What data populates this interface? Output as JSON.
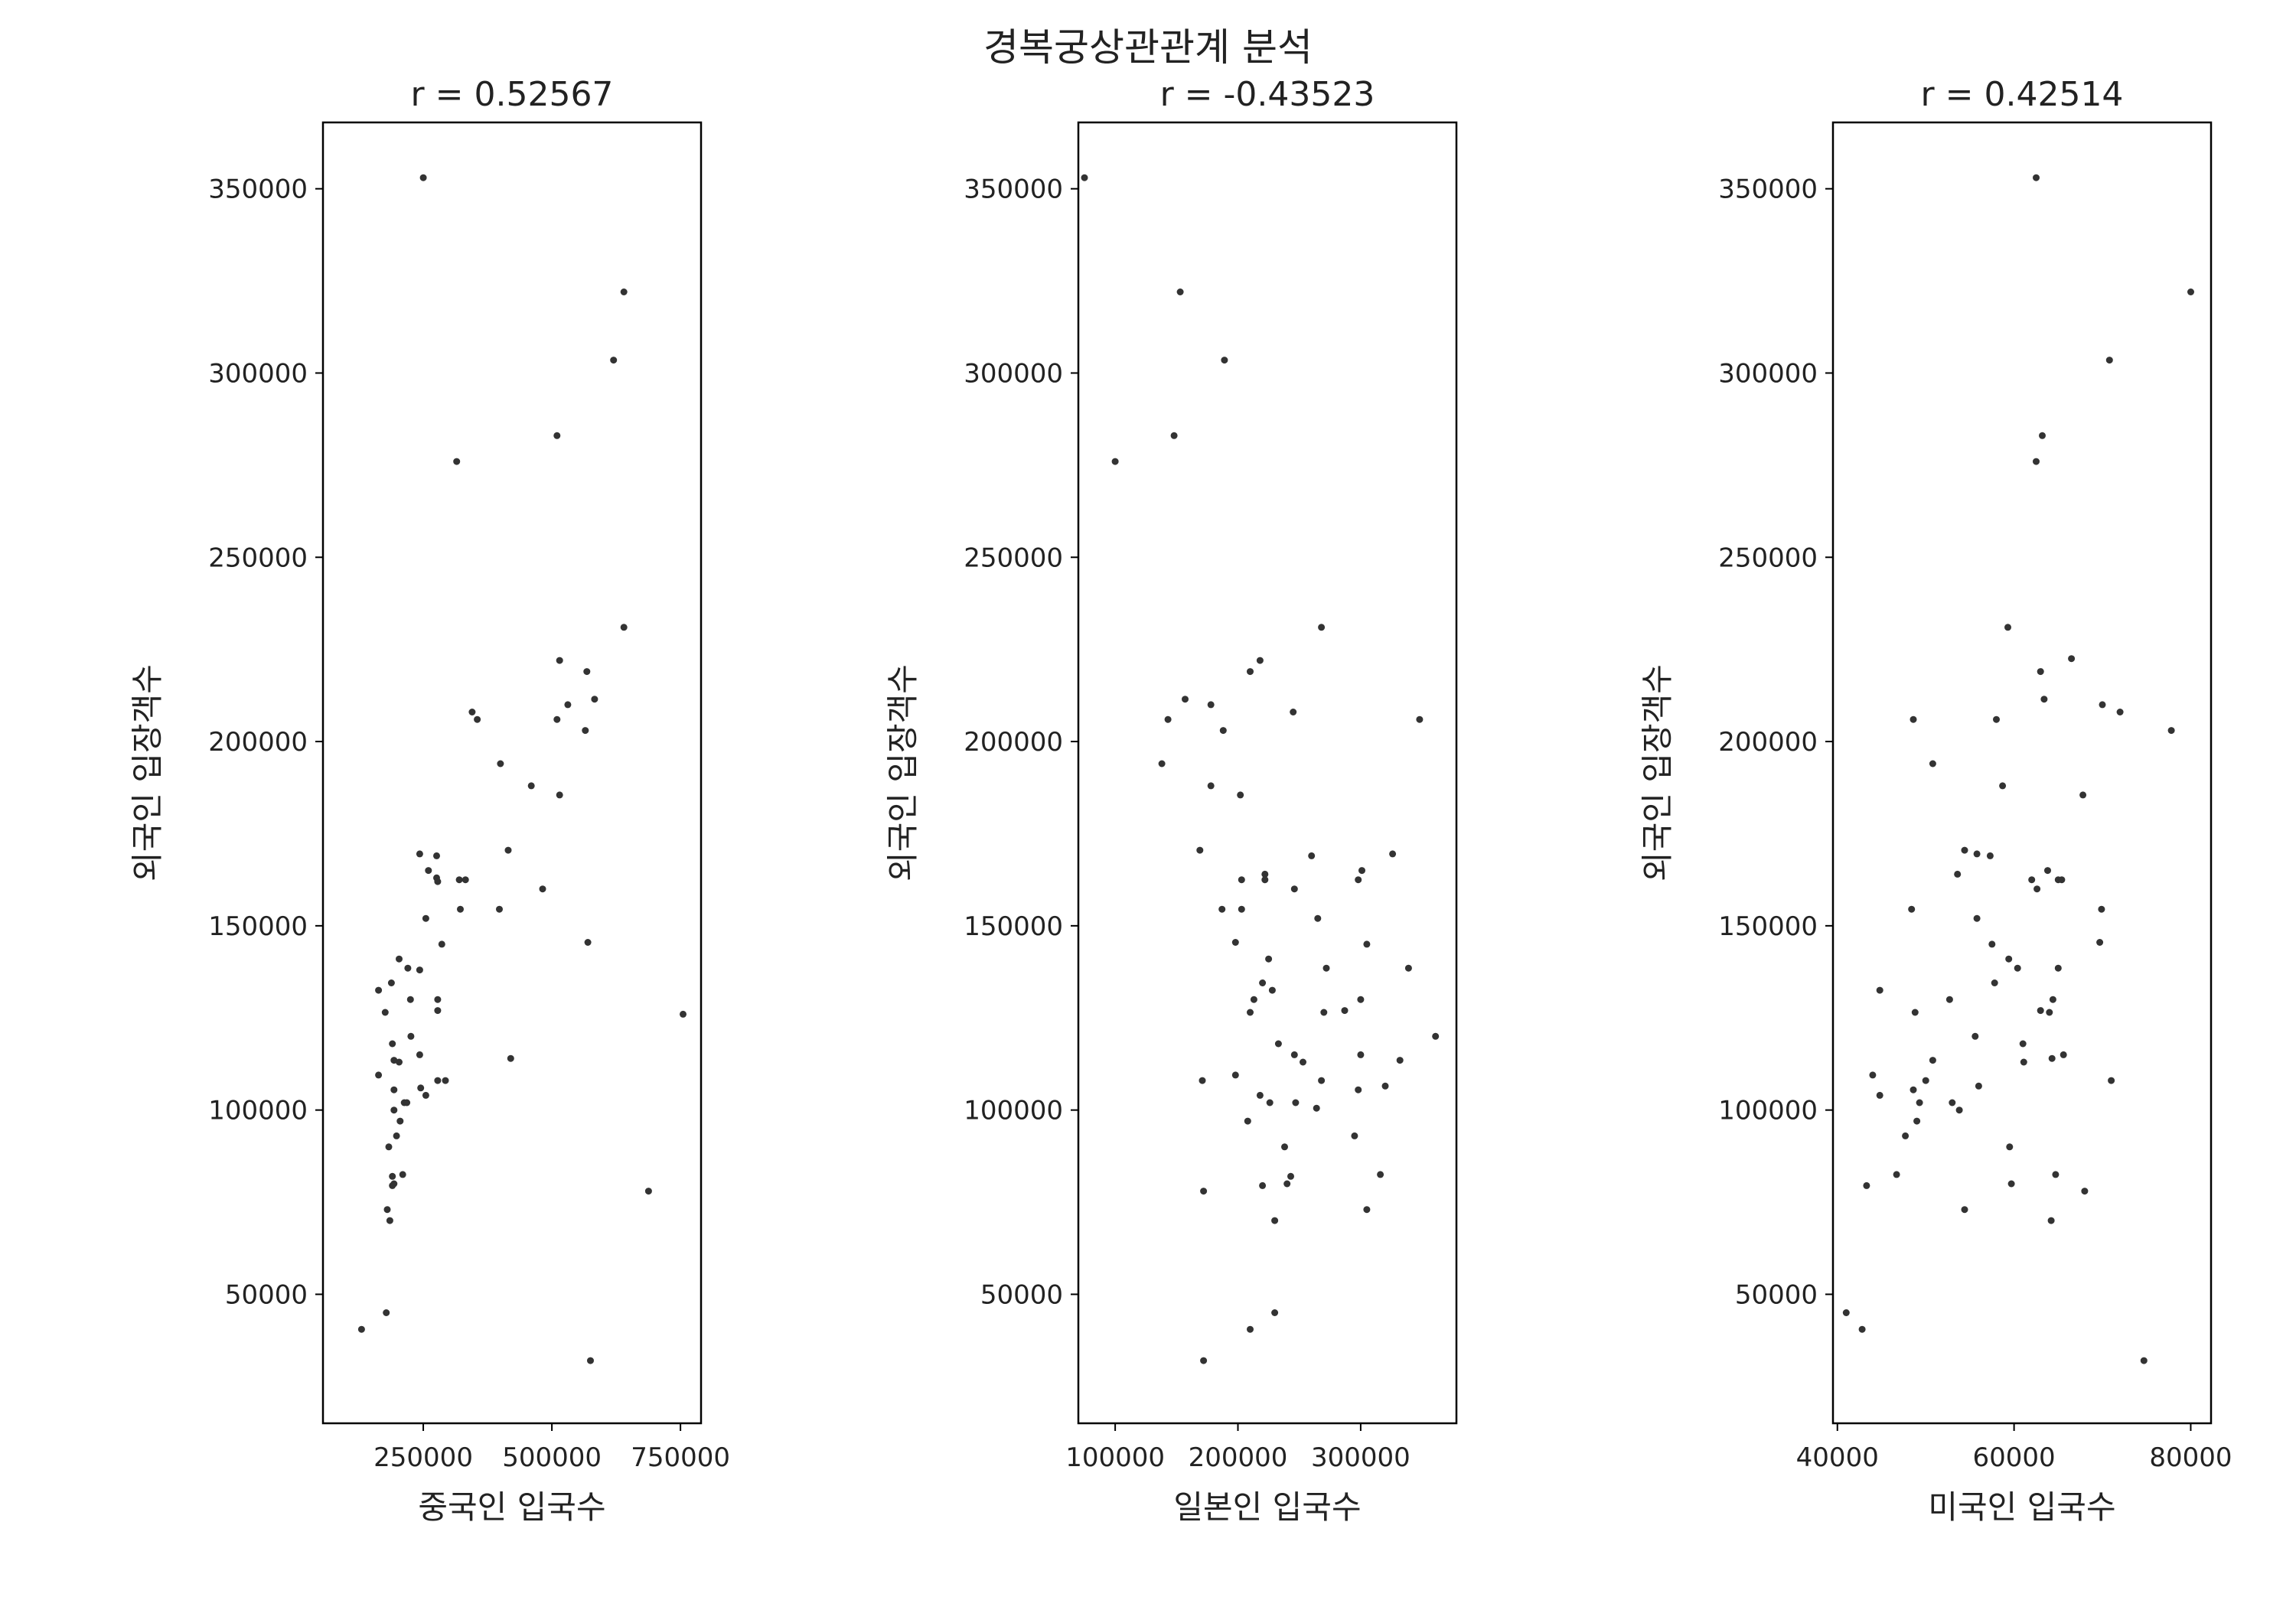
{
  "figure": {
    "suptitle": "경복궁상관관계 분석"
  },
  "chart_data": [
    {
      "type": "scatter",
      "title": "r = 0.52567",
      "xlabel": "중국인 입국수",
      "ylabel": "외국인 입장객수",
      "xlim": [
        55000,
        790000
      ],
      "ylim": [
        15000,
        368000
      ],
      "xticks": [
        "250000",
        "500000",
        "750000"
      ],
      "yticks": [
        "50000",
        "100000",
        "150000",
        "200000",
        "250000",
        "300000",
        "350000"
      ],
      "grid": false,
      "point_color": "#333333",
      "points": [
        [
          250000,
          353000
        ],
        [
          640000,
          322000
        ],
        [
          620000,
          303500
        ],
        [
          315000,
          276000
        ],
        [
          510000,
          283000
        ],
        [
          640000,
          231000
        ],
        [
          515000,
          222000
        ],
        [
          568000,
          219000
        ],
        [
          583000,
          211500
        ],
        [
          531000,
          210000
        ],
        [
          510000,
          206000
        ],
        [
          345000,
          208000
        ],
        [
          355000,
          206000
        ],
        [
          565000,
          203000
        ],
        [
          400000,
          194000
        ],
        [
          460000,
          188000
        ],
        [
          515000,
          185500
        ],
        [
          415000,
          170500
        ],
        [
          243000,
          169500
        ],
        [
          276000,
          169000
        ],
        [
          260000,
          165000
        ],
        [
          276000,
          163000
        ],
        [
          278000,
          162000
        ],
        [
          320000,
          162500
        ],
        [
          332000,
          162500
        ],
        [
          482000,
          160000
        ],
        [
          322000,
          154500
        ],
        [
          398000,
          154500
        ],
        [
          255000,
          152000
        ],
        [
          286000,
          145000
        ],
        [
          570000,
          145500
        ],
        [
          203000,
          141000
        ],
        [
          220000,
          138500
        ],
        [
          243000,
          138000
        ],
        [
          188000,
          134500
        ],
        [
          163000,
          132500
        ],
        [
          225000,
          130000
        ],
        [
          278000,
          130000
        ],
        [
          278000,
          127000
        ],
        [
          176000,
          126500
        ],
        [
          755000,
          126000
        ],
        [
          190000,
          118000
        ],
        [
          226000,
          120000
        ],
        [
          193000,
          113500
        ],
        [
          203000,
          113000
        ],
        [
          243000,
          115000
        ],
        [
          420000,
          114000
        ],
        [
          163000,
          109500
        ],
        [
          278000,
          108000
        ],
        [
          293000,
          108000
        ],
        [
          193000,
          105500
        ],
        [
          245000,
          106000
        ],
        [
          255000,
          104000
        ],
        [
          213000,
          102000
        ],
        [
          218000,
          102000
        ],
        [
          193000,
          100000
        ],
        [
          205000,
          97000
        ],
        [
          198000,
          93000
        ],
        [
          183000,
          90000
        ],
        [
          210000,
          82500
        ],
        [
          190000,
          82000
        ],
        [
          193000,
          80000
        ],
        [
          190000,
          79500
        ],
        [
          688000,
          78000
        ],
        [
          180000,
          73000
        ],
        [
          185000,
          70000
        ],
        [
          178000,
          45000
        ],
        [
          130000,
          40500
        ],
        [
          575000,
          32000
        ]
      ]
    },
    {
      "type": "scatter",
      "title": "r = -0.43523",
      "xlabel": "일본인 입국수",
      "ylabel": "외국인 입장객수",
      "xlim": [
        70000,
        378000
      ],
      "ylim": [
        15000,
        368000
      ],
      "xticks": [
        "100000",
        "200000",
        "300000"
      ],
      "yticks": [
        "50000",
        "100000",
        "150000",
        "200000",
        "250000",
        "300000",
        "350000"
      ],
      "grid": false,
      "point_color": "#333333",
      "points": [
        [
          75000,
          353000
        ],
        [
          153000,
          322000
        ],
        [
          189000,
          303500
        ],
        [
          100000,
          276000
        ],
        [
          148000,
          283000
        ],
        [
          268000,
          231000
        ],
        [
          218000,
          222000
        ],
        [
          210000,
          219000
        ],
        [
          157000,
          211500
        ],
        [
          178000,
          210000
        ],
        [
          143000,
          206000
        ],
        [
          245000,
          208000
        ],
        [
          348000,
          206000
        ],
        [
          188000,
          203000
        ],
        [
          138000,
          194000
        ],
        [
          178000,
          188000
        ],
        [
          202000,
          185500
        ],
        [
          169000,
          170500
        ],
        [
          326000,
          169500
        ],
        [
          260000,
          169000
        ],
        [
          301000,
          165000
        ],
        [
          222000,
          164000
        ],
        [
          222000,
          162500
        ],
        [
          203000,
          162500
        ],
        [
          298000,
          162500
        ],
        [
          246000,
          160000
        ],
        [
          187000,
          154500
        ],
        [
          203000,
          154500
        ],
        [
          265000,
          152000
        ],
        [
          305000,
          145000
        ],
        [
          198000,
          145500
        ],
        [
          225000,
          141000
        ],
        [
          272000,
          138500
        ],
        [
          339000,
          138500
        ],
        [
          220000,
          134500
        ],
        [
          228000,
          132500
        ],
        [
          300000,
          130000
        ],
        [
          213000,
          130000
        ],
        [
          287000,
          127000
        ],
        [
          270000,
          126500
        ],
        [
          210000,
          126500
        ],
        [
          361000,
          120000
        ],
        [
          233000,
          118000
        ],
        [
          246000,
          115000
        ],
        [
          253000,
          113000
        ],
        [
          300000,
          115000
        ],
        [
          332000,
          113500
        ],
        [
          198000,
          109500
        ],
        [
          171000,
          108000
        ],
        [
          268000,
          108000
        ],
        [
          320000,
          106500
        ],
        [
          298000,
          105500
        ],
        [
          218000,
          104000
        ],
        [
          226000,
          102000
        ],
        [
          247000,
          102000
        ],
        [
          264000,
          100500
        ],
        [
          208000,
          97000
        ],
        [
          295000,
          93000
        ],
        [
          238000,
          90000
        ],
        [
          316000,
          82500
        ],
        [
          243000,
          82000
        ],
        [
          240000,
          80000
        ],
        [
          220000,
          79500
        ],
        [
          172000,
          78000
        ],
        [
          305000,
          73000
        ],
        [
          230000,
          70000
        ],
        [
          230000,
          45000
        ],
        [
          210000,
          40500
        ],
        [
          172000,
          32000
        ]
      ]
    },
    {
      "type": "scatter",
      "title": "r = 0.42514",
      "xlabel": "미국인 입국수",
      "ylabel": "외국인 입장객수",
      "xlim": [
        39500,
        82300
      ],
      "ylim": [
        15000,
        368000
      ],
      "xticks": [
        "40000",
        "60000",
        "80000"
      ],
      "yticks": [
        "50000",
        "100000",
        "150000",
        "200000",
        "250000",
        "300000",
        "350000"
      ],
      "grid": false,
      "point_color": "#333333",
      "points": [
        [
          62500,
          353000
        ],
        [
          80000,
          322000
        ],
        [
          70800,
          303500
        ],
        [
          62500,
          276000
        ],
        [
          63200,
          283000
        ],
        [
          59300,
          231000
        ],
        [
          66500,
          222500
        ],
        [
          63000,
          219000
        ],
        [
          63400,
          211500
        ],
        [
          70000,
          210000
        ],
        [
          72000,
          208000
        ],
        [
          48600,
          206000
        ],
        [
          58000,
          206000
        ],
        [
          77800,
          203000
        ],
        [
          50800,
          194000
        ],
        [
          58700,
          188000
        ],
        [
          67800,
          185500
        ],
        [
          54400,
          170500
        ],
        [
          55800,
          169500
        ],
        [
          57300,
          169000
        ],
        [
          63800,
          165000
        ],
        [
          53600,
          164000
        ],
        [
          62000,
          162500
        ],
        [
          65000,
          162500
        ],
        [
          65400,
          162500
        ],
        [
          62600,
          160000
        ],
        [
          48400,
          154500
        ],
        [
          69900,
          154500
        ],
        [
          55800,
          152000
        ],
        [
          57500,
          145000
        ],
        [
          69700,
          145500
        ],
        [
          59400,
          141000
        ],
        [
          60400,
          138500
        ],
        [
          65000,
          138500
        ],
        [
          57800,
          134500
        ],
        [
          44800,
          132500
        ],
        [
          52700,
          130000
        ],
        [
          64400,
          130000
        ],
        [
          63000,
          127000
        ],
        [
          64000,
          126500
        ],
        [
          48800,
          126500
        ],
        [
          55600,
          120000
        ],
        [
          61000,
          118000
        ],
        [
          65600,
          115000
        ],
        [
          64300,
          114000
        ],
        [
          50800,
          113500
        ],
        [
          61100,
          113000
        ],
        [
          44000,
          109500
        ],
        [
          50000,
          108000
        ],
        [
          71000,
          108000
        ],
        [
          56000,
          106500
        ],
        [
          48600,
          105500
        ],
        [
          44800,
          104000
        ],
        [
          49300,
          102000
        ],
        [
          53000,
          102000
        ],
        [
          53800,
          100000
        ],
        [
          49000,
          97000
        ],
        [
          47700,
          93000
        ],
        [
          59500,
          90000
        ],
        [
          46700,
          82500
        ],
        [
          64700,
          82500
        ],
        [
          59700,
          80000
        ],
        [
          43300,
          79500
        ],
        [
          68000,
          78000
        ],
        [
          54400,
          73000
        ],
        [
          64200,
          70000
        ],
        [
          41000,
          45000
        ],
        [
          42800,
          40500
        ],
        [
          74700,
          32000
        ]
      ]
    }
  ]
}
